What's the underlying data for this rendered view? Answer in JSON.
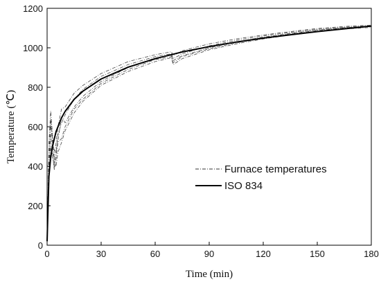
{
  "chart_data": {
    "type": "line",
    "title": "",
    "xlabel": "Time (min)",
    "ylabel": "Temperature (℃)",
    "xlim": [
      0,
      180
    ],
    "ylim": [
      0,
      1200
    ],
    "x_ticks": [
      0,
      30,
      60,
      90,
      120,
      150,
      180
    ],
    "y_ticks": [
      0,
      200,
      400,
      600,
      800,
      1000,
      1200
    ],
    "x_tick_labels": [
      "0",
      "30",
      "60",
      "90",
      "120",
      "150",
      "180"
    ],
    "y_tick_labels": [
      "0",
      "200",
      "400",
      "600",
      "800",
      "1000",
      "1200"
    ],
    "grid": false,
    "legend_position": "center-right",
    "legend": [
      {
        "label": "Furnace temperatures",
        "style": "dash-dot thin"
      },
      {
        "label": "ISO 834",
        "style": "solid thick"
      }
    ],
    "series": [
      {
        "name": "ISO 834",
        "style": "solid",
        "color": "#000000",
        "x": [
          0,
          1,
          2,
          3,
          5,
          8,
          10,
          15,
          20,
          30,
          45,
          60,
          75,
          90,
          105,
          120,
          135,
          150,
          165,
          180
        ],
        "y": [
          20,
          349,
          445,
          502,
          576,
          645,
          678,
          739,
          781,
          842,
          902,
          945,
          979,
          1006,
          1029,
          1049,
          1066,
          1082,
          1096,
          1110
        ]
      },
      {
        "name": "Furnace temperatures",
        "style": "dashdot",
        "color": "#444444",
        "x": [
          0,
          1,
          2,
          3,
          4,
          5,
          6,
          8,
          10,
          15,
          20,
          30,
          45,
          60,
          69,
          70,
          75,
          90,
          105,
          120,
          135,
          150,
          165,
          180
        ],
        "y": [
          20,
          520,
          680,
          560,
          430,
          520,
          600,
          690,
          700,
          770,
          810,
          870,
          930,
          965,
          980,
          960,
          985,
          1020,
          1045,
          1065,
          1082,
          1098,
          1108,
          1115
        ]
      },
      {
        "name": "Furnace temperatures",
        "style": "dashdot",
        "color": "#444444",
        "x": [
          0,
          1,
          2,
          3,
          4,
          5,
          6,
          8,
          10,
          15,
          20,
          30,
          45,
          60,
          69,
          70,
          75,
          90,
          105,
          120,
          135,
          150,
          165,
          180
        ],
        "y": [
          20,
          380,
          560,
          470,
          380,
          440,
          520,
          540,
          600,
          690,
          740,
          820,
          890,
          940,
          955,
          925,
          955,
          995,
          1025,
          1050,
          1070,
          1088,
          1100,
          1108
        ]
      },
      {
        "name": "Furnace temperatures",
        "style": "dashdot",
        "color": "#444444",
        "x": [
          0,
          1,
          2,
          3,
          4,
          5,
          6,
          8,
          10,
          15,
          20,
          30,
          45,
          60,
          69,
          70,
          75,
          90,
          105,
          120,
          135,
          150,
          165,
          180
        ],
        "y": [
          20,
          420,
          610,
          520,
          420,
          400,
          470,
          520,
          580,
          670,
          730,
          810,
          880,
          930,
          950,
          915,
          945,
          990,
          1020,
          1045,
          1065,
          1083,
          1095,
          1103
        ]
      },
      {
        "name": "Furnace temperatures",
        "style": "dashdot",
        "color": "#444444",
        "x": [
          0,
          1,
          2,
          3,
          4,
          5,
          6,
          8,
          10,
          15,
          20,
          30,
          45,
          60,
          69,
          70,
          75,
          90,
          105,
          120,
          135,
          150,
          165,
          180
        ],
        "y": [
          20,
          460,
          640,
          540,
          480,
          470,
          560,
          620,
          660,
          740,
          790,
          855,
          915,
          955,
          970,
          945,
          970,
          1010,
          1038,
          1060,
          1078,
          1094,
          1104,
          1112
        ]
      },
      {
        "name": "Furnace temperatures",
        "style": "dashdot",
        "color": "#444444",
        "x": [
          0,
          1,
          2,
          3,
          4,
          5,
          6,
          8,
          10,
          15,
          20,
          30,
          45,
          60,
          69,
          70,
          75,
          90,
          105,
          120,
          135,
          150,
          165,
          180
        ],
        "y": [
          20,
          340,
          500,
          450,
          390,
          460,
          530,
          650,
          620,
          700,
          755,
          830,
          900,
          948,
          962,
          935,
          960,
          1000,
          1030,
          1054,
          1073,
          1090,
          1102,
          1110
        ]
      }
    ]
  }
}
